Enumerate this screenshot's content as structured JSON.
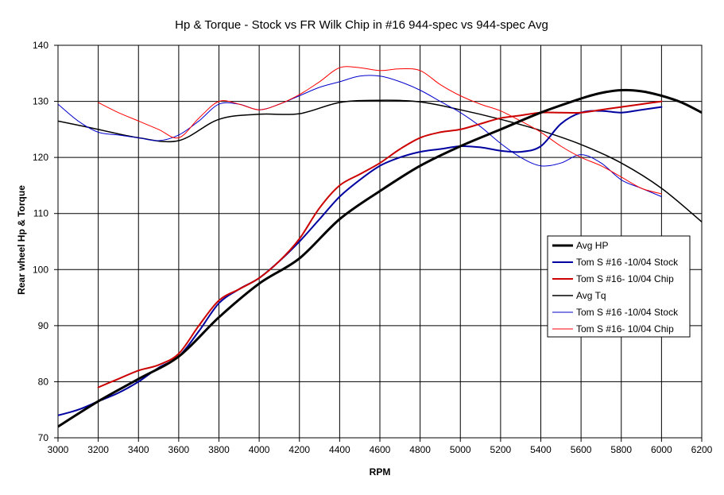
{
  "chart_data": {
    "type": "line",
    "title": "Hp & Torque - Stock vs FR Wilk Chip in #16 944-spec vs 944-spec Avg",
    "xlabel": "RPM",
    "ylabel": "Rear wheel Hp & Torque",
    "xlim": [
      3000,
      6200
    ],
    "ylim": [
      70,
      140
    ],
    "x_ticks": [
      3000,
      3200,
      3400,
      3600,
      3800,
      4000,
      4200,
      4400,
      4600,
      4800,
      5000,
      5200,
      5400,
      5600,
      5800,
      6000,
      6200
    ],
    "y_ticks": [
      70,
      80,
      90,
      100,
      110,
      120,
      130,
      140
    ],
    "grid": true,
    "legend_position": "right",
    "series": [
      {
        "name": "Avg HP",
        "color": "#000000",
        "width": 3,
        "points": [
          [
            3000,
            72
          ],
          [
            3200,
            76.5
          ],
          [
            3400,
            80.5
          ],
          [
            3600,
            84.5
          ],
          [
            3800,
            91.5
          ],
          [
            4000,
            97.5
          ],
          [
            4200,
            102
          ],
          [
            4400,
            109
          ],
          [
            4600,
            114
          ],
          [
            4800,
            118.5
          ],
          [
            5000,
            122
          ],
          [
            5200,
            125
          ],
          [
            5400,
            128
          ],
          [
            5600,
            130.5
          ],
          [
            5700,
            131.5
          ],
          [
            5800,
            132
          ],
          [
            5900,
            131.8
          ],
          [
            6000,
            131
          ],
          [
            6100,
            129.8
          ],
          [
            6200,
            128
          ]
        ]
      },
      {
        "name": "Tom S #16 -10/04 Stock",
        "color": "#0000a0",
        "width": 2,
        "points": [
          [
            3000,
            74
          ],
          [
            3100,
            75
          ],
          [
            3200,
            76.5
          ],
          [
            3300,
            78
          ],
          [
            3400,
            80
          ],
          [
            3500,
            82.5
          ],
          [
            3600,
            84.5
          ],
          [
            3700,
            89
          ],
          [
            3800,
            94
          ],
          [
            3900,
            96.5
          ],
          [
            4000,
            98.5
          ],
          [
            4100,
            101.5
          ],
          [
            4200,
            105
          ],
          [
            4300,
            109
          ],
          [
            4400,
            113
          ],
          [
            4500,
            116
          ],
          [
            4600,
            118.5
          ],
          [
            4700,
            120
          ],
          [
            4800,
            121
          ],
          [
            4900,
            121.5
          ],
          [
            5000,
            122
          ],
          [
            5100,
            121.8
          ],
          [
            5200,
            121.2
          ],
          [
            5300,
            121
          ],
          [
            5400,
            122
          ],
          [
            5500,
            126
          ],
          [
            5600,
            128
          ],
          [
            5700,
            128.3
          ],
          [
            5800,
            128
          ],
          [
            5900,
            128.5
          ],
          [
            6000,
            129
          ]
        ]
      },
      {
        "name": "Tom S #16- 10/04 Chip",
        "color": "#cc0000",
        "width": 2,
        "points": [
          [
            3200,
            79
          ],
          [
            3300,
            80.5
          ],
          [
            3400,
            82
          ],
          [
            3500,
            83
          ],
          [
            3600,
            85
          ],
          [
            3700,
            90
          ],
          [
            3800,
            94.5
          ],
          [
            3900,
            96.5
          ],
          [
            4000,
            98.5
          ],
          [
            4100,
            101.5
          ],
          [
            4200,
            105.5
          ],
          [
            4300,
            111
          ],
          [
            4400,
            115
          ],
          [
            4500,
            117
          ],
          [
            4600,
            119
          ],
          [
            4700,
            121.5
          ],
          [
            4800,
            123.5
          ],
          [
            4900,
            124.5
          ],
          [
            5000,
            125
          ],
          [
            5100,
            126
          ],
          [
            5200,
            127
          ],
          [
            5300,
            127.5
          ],
          [
            5400,
            128
          ],
          [
            5500,
            128
          ],
          [
            5600,
            128
          ],
          [
            5700,
            128.5
          ],
          [
            5800,
            129
          ],
          [
            5900,
            129.5
          ],
          [
            6000,
            130
          ]
        ]
      },
      {
        "name": "Avg Tq",
        "color": "#000000",
        "width": 1.5,
        "points": [
          [
            3000,
            126.5
          ],
          [
            3200,
            125
          ],
          [
            3400,
            123.5
          ],
          [
            3600,
            123
          ],
          [
            3800,
            126.8
          ],
          [
            4000,
            127.7
          ],
          [
            4200,
            127.8
          ],
          [
            4400,
            129.8
          ],
          [
            4600,
            130.2
          ],
          [
            4800,
            129.9
          ],
          [
            5000,
            128.5
          ],
          [
            5200,
            126.8
          ],
          [
            5400,
            124.8
          ],
          [
            5600,
            122.3
          ],
          [
            5800,
            119
          ],
          [
            6000,
            114.5
          ],
          [
            6200,
            108.5
          ]
        ]
      },
      {
        "name": "Tom S #16 -10/04 Stock",
        "color": "#0000cc",
        "width": 1,
        "points": [
          [
            3000,
            129.5
          ],
          [
            3100,
            126.5
          ],
          [
            3200,
            124.5
          ],
          [
            3300,
            124
          ],
          [
            3400,
            123.5
          ],
          [
            3500,
            123
          ],
          [
            3600,
            124
          ],
          [
            3700,
            126.5
          ],
          [
            3800,
            129.5
          ],
          [
            3900,
            129.5
          ],
          [
            4000,
            128.5
          ],
          [
            4100,
            129.5
          ],
          [
            4200,
            131
          ],
          [
            4300,
            132.5
          ],
          [
            4400,
            133.5
          ],
          [
            4500,
            134.5
          ],
          [
            4600,
            134.5
          ],
          [
            4700,
            133.5
          ],
          [
            4800,
            132
          ],
          [
            4900,
            130
          ],
          [
            5000,
            128
          ],
          [
            5100,
            125.5
          ],
          [
            5200,
            122.5
          ],
          [
            5300,
            120
          ],
          [
            5400,
            118.5
          ],
          [
            5500,
            119
          ],
          [
            5600,
            120.5
          ],
          [
            5700,
            119
          ],
          [
            5800,
            116
          ],
          [
            5900,
            114.5
          ],
          [
            6000,
            113
          ]
        ]
      },
      {
        "name": "Tom S #16- 10/04 Chip",
        "color": "#ff0000",
        "width": 1,
        "points": [
          [
            3200,
            129.8
          ],
          [
            3300,
            128
          ],
          [
            3400,
            126.5
          ],
          [
            3500,
            125
          ],
          [
            3600,
            123.5
          ],
          [
            3700,
            127
          ],
          [
            3800,
            130
          ],
          [
            3900,
            129.5
          ],
          [
            4000,
            128.5
          ],
          [
            4100,
            129.5
          ],
          [
            4200,
            131.2
          ],
          [
            4300,
            133.5
          ],
          [
            4400,
            136
          ],
          [
            4500,
            136
          ],
          [
            4600,
            135.5
          ],
          [
            4700,
            135.8
          ],
          [
            4800,
            135.5
          ],
          [
            4900,
            133
          ],
          [
            5000,
            131
          ],
          [
            5100,
            129.5
          ],
          [
            5200,
            128.3
          ],
          [
            5300,
            126.5
          ],
          [
            5400,
            124.5
          ],
          [
            5500,
            122
          ],
          [
            5600,
            120
          ],
          [
            5700,
            118.5
          ],
          [
            5800,
            116.5
          ],
          [
            5900,
            114.5
          ],
          [
            6000,
            113.5
          ]
        ]
      }
    ]
  }
}
